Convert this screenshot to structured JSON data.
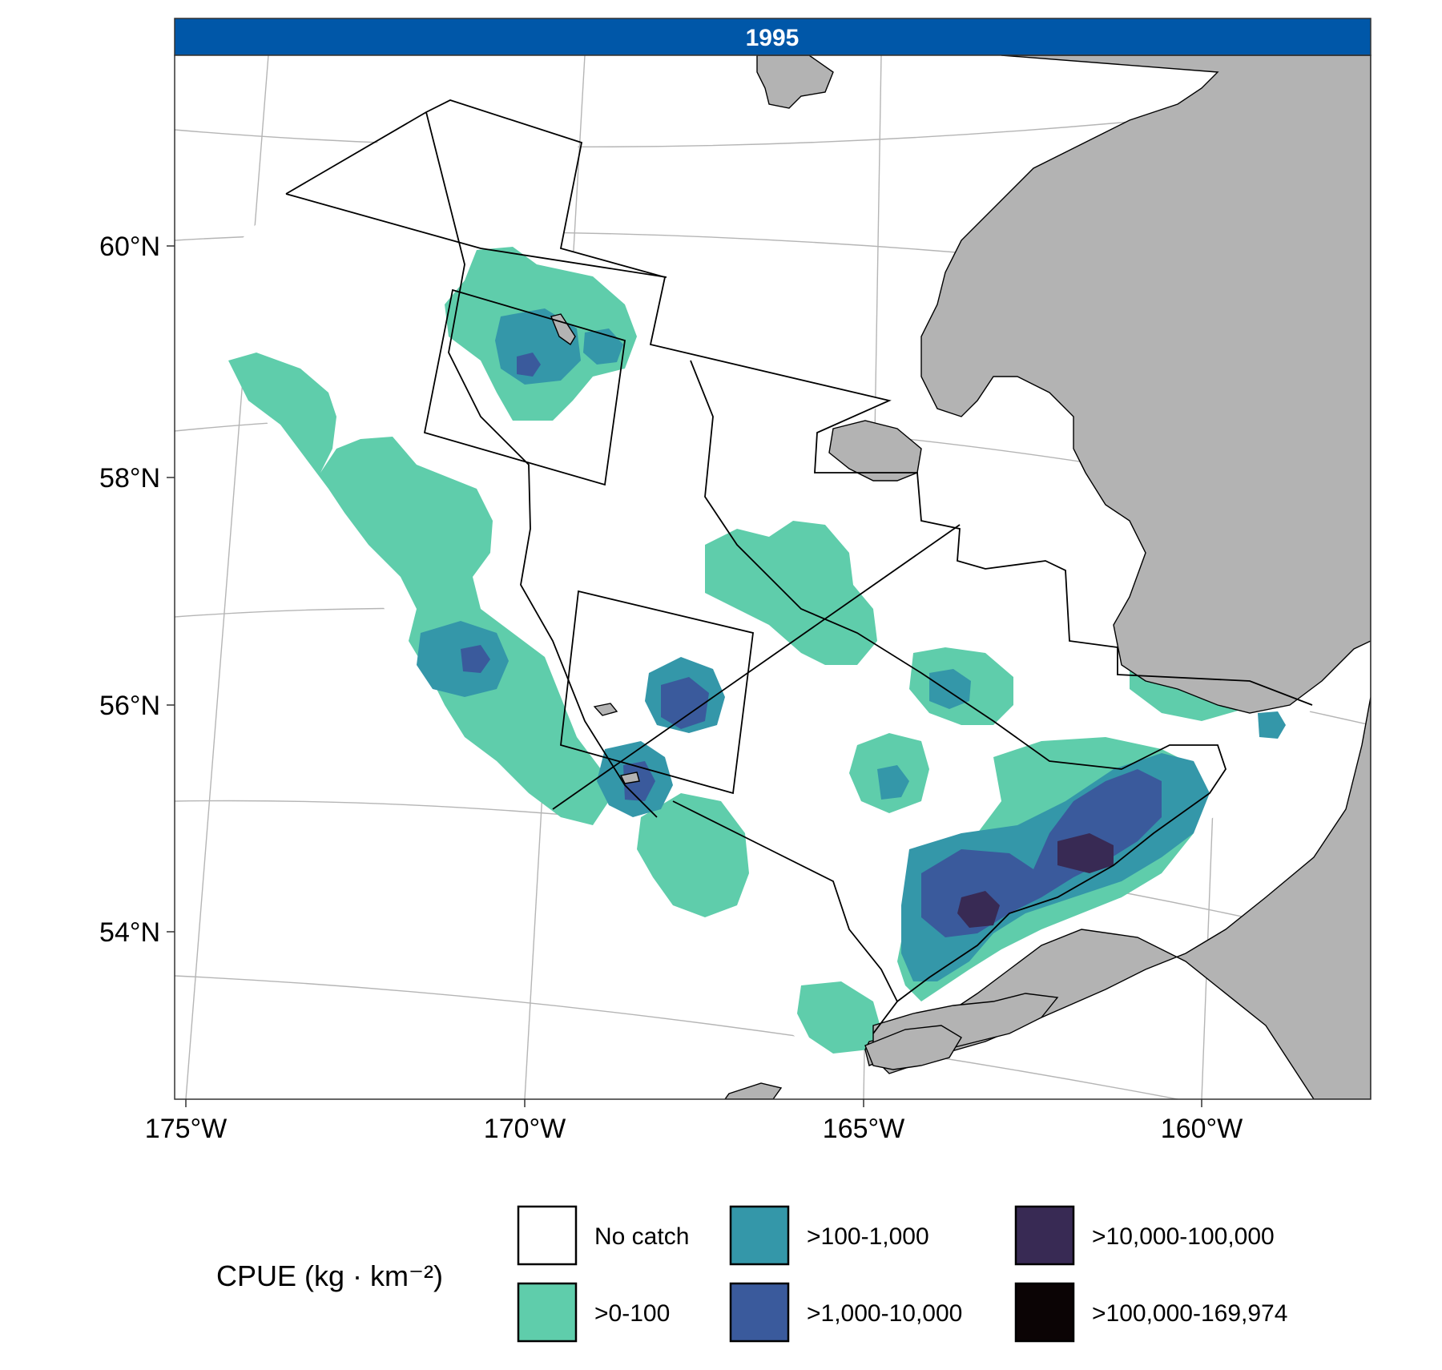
{
  "panel": {
    "year_label": "1995",
    "strip_color": "#0057A8"
  },
  "axes": {
    "x_ticks": [
      "175°W",
      "170°W",
      "165°W",
      "160°W"
    ],
    "y_ticks": [
      "54°N",
      "56°N",
      "58°N",
      "60°N"
    ]
  },
  "legend": {
    "title": "CPUE (kg · km⁻²)",
    "items": [
      {
        "label": "No catch",
        "color": "#FFFFFF"
      },
      {
        "label": ">0-100",
        "color": "#5FCDAB"
      },
      {
        "label": ">100-1,000",
        "color": "#3497A9"
      },
      {
        "label": ">1,000-10,000",
        "color": "#3A5A9C"
      },
      {
        "label": ">10,000-100,000",
        "color": "#382A54"
      },
      {
        "label": ">100,000-169,974",
        "color": "#0B0405"
      }
    ]
  },
  "colors": {
    "land": "#B3B3B3",
    "graticule": "#B5B5B5",
    "panel_border": "#333333"
  }
}
